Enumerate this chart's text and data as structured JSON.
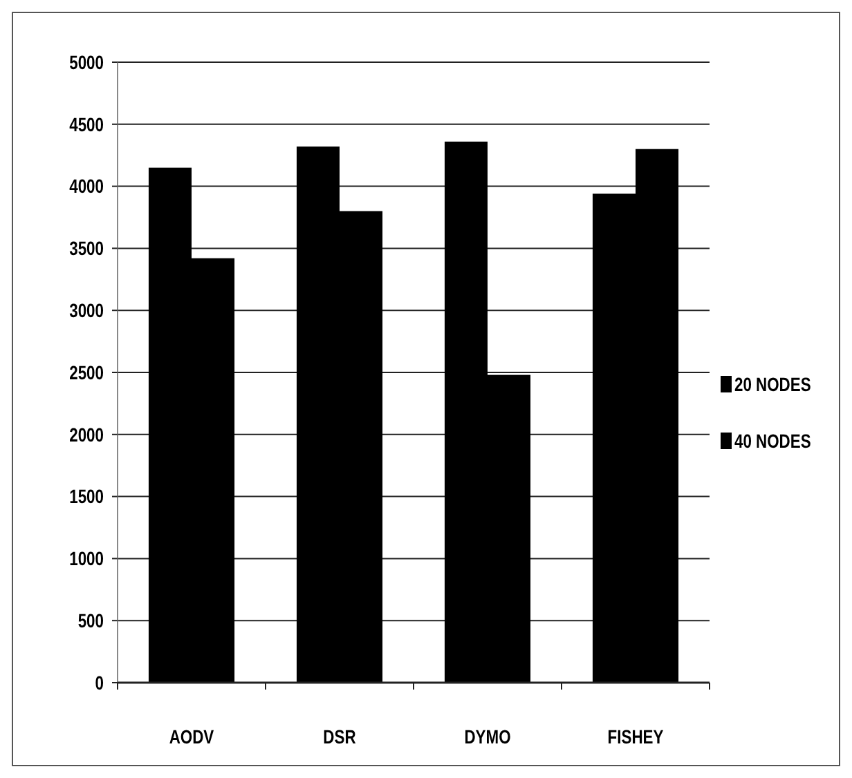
{
  "chart_data": {
    "type": "bar",
    "categories": [
      "AODV",
      "DSR",
      "DYMO",
      "FISHEY"
    ],
    "series": [
      {
        "name": "20 NODES",
        "color": "#000000",
        "values": [
          4150,
          4320,
          4360,
          3940
        ]
      },
      {
        "name": "40 NODES",
        "color": "#000000",
        "values": [
          3420,
          3800,
          2480,
          4300
        ]
      }
    ],
    "ylim": [
      0,
      5000
    ],
    "yticks": [
      0,
      500,
      1000,
      1500,
      2000,
      2500,
      3000,
      3500,
      4000,
      4500,
      5000
    ],
    "grid": "y",
    "legend": "right"
  }
}
